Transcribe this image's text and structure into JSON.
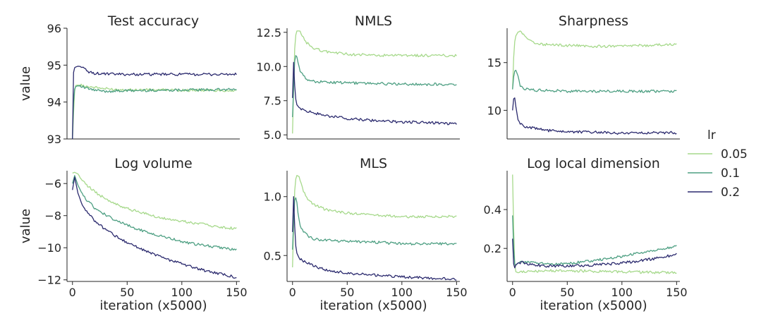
{
  "figure": {
    "legend_title": "lr",
    "legend_placement": "right",
    "series_colors": {
      "0.05": "#a6d98b",
      "0.1": "#4d9f82",
      "0.2": "#2b2a6e"
    }
  },
  "chart_data": [
    {
      "type": "line",
      "title": "Test accuracy",
      "xlabel": "",
      "ylabel": "value",
      "xlim": [
        -5,
        153
      ],
      "ylim": [
        93,
        96
      ],
      "yticks": [
        93,
        94,
        95,
        96
      ],
      "ytick_labels": [
        "93",
        "94",
        "95",
        "96"
      ],
      "xticks": [],
      "xtick_labels": [],
      "grid": false,
      "series": [
        {
          "name": "0.05",
          "x": [
            0,
            1,
            2,
            3,
            5,
            8,
            12,
            20,
            30,
            40,
            60,
            80,
            100,
            120,
            150
          ],
          "values": [
            93.0,
            93.7,
            94.3,
            94.45,
            94.46,
            94.45,
            94.43,
            94.4,
            94.36,
            94.34,
            94.33,
            94.33,
            94.32,
            94.32,
            94.31
          ]
        },
        {
          "name": "0.1",
          "x": [
            0,
            1,
            2,
            3,
            5,
            8,
            12,
            20,
            30,
            40,
            60,
            80,
            100,
            120,
            150
          ],
          "values": [
            93.0,
            94.0,
            94.35,
            94.42,
            94.44,
            94.42,
            94.38,
            94.32,
            94.29,
            94.3,
            94.31,
            94.32,
            94.33,
            94.33,
            94.34
          ]
        },
        {
          "name": "0.2",
          "x": [
            0,
            1,
            2,
            3,
            5,
            8,
            10,
            14,
            20,
            30,
            50,
            80,
            100,
            120,
            150
          ],
          "values": [
            93.0,
            94.8,
            94.93,
            94.95,
            94.97,
            94.96,
            94.92,
            94.82,
            94.78,
            94.76,
            94.75,
            94.75,
            94.75,
            94.75,
            94.75
          ]
        }
      ]
    },
    {
      "type": "line",
      "title": "NMLS",
      "xlabel": "",
      "ylabel": "",
      "xlim": [
        -5,
        153
      ],
      "ylim": [
        4.7,
        12.8
      ],
      "yticks": [
        5.0,
        7.5,
        10.0,
        12.5
      ],
      "ytick_labels": [
        "5.0",
        "7.5",
        "10.0",
        "12.5"
      ],
      "xticks": [],
      "xtick_labels": [],
      "grid": false,
      "series": [
        {
          "name": "0.05",
          "x": [
            0,
            1,
            2,
            3,
            4,
            6,
            8,
            12,
            20,
            30,
            50,
            80,
            100,
            120,
            150
          ],
          "values": [
            5.1,
            8.5,
            11.3,
            12.3,
            12.6,
            12.6,
            12.4,
            11.8,
            11.3,
            11.1,
            10.9,
            10.8,
            10.8,
            10.8,
            10.8
          ]
        },
        {
          "name": "0.1",
          "x": [
            0,
            1,
            2,
            3,
            4,
            5,
            7,
            10,
            15,
            20,
            30,
            50,
            80,
            100,
            150
          ],
          "values": [
            6.3,
            8.5,
            10.4,
            10.8,
            10.7,
            10.3,
            9.7,
            9.3,
            9.0,
            8.9,
            8.85,
            8.8,
            8.75,
            8.7,
            8.7
          ]
        },
        {
          "name": "0.2",
          "x": [
            0,
            1,
            2,
            3,
            4,
            6,
            10,
            20,
            30,
            50,
            80,
            100,
            120,
            150
          ],
          "values": [
            7.7,
            10.3,
            8.6,
            7.6,
            7.2,
            7.0,
            6.8,
            6.6,
            6.4,
            6.2,
            6.0,
            5.95,
            5.9,
            5.8
          ]
        }
      ]
    },
    {
      "type": "line",
      "title": "Sharpness",
      "xlabel": "",
      "ylabel": "",
      "xlim": [
        -5,
        153
      ],
      "ylim": [
        7.0,
        18.6
      ],
      "yticks": [
        10,
        15
      ],
      "ytick_labels": [
        "10",
        "15"
      ],
      "xticks": [],
      "xtick_labels": [],
      "grid": false,
      "series": [
        {
          "name": "0.05",
          "x": [
            0,
            1,
            2,
            3,
            5,
            8,
            12,
            20,
            30,
            50,
            80,
            100,
            120,
            150
          ],
          "values": [
            12.2,
            15.5,
            17.2,
            17.8,
            18.2,
            18.3,
            17.6,
            17.0,
            16.9,
            16.8,
            16.7,
            16.7,
            16.8,
            16.9
          ]
        },
        {
          "name": "0.1",
          "x": [
            0,
            1,
            2,
            3,
            5,
            7,
            10,
            15,
            20,
            30,
            50,
            80,
            100,
            150
          ],
          "values": [
            12.2,
            13.5,
            14.1,
            14.2,
            13.6,
            12.6,
            12.3,
            12.2,
            12.1,
            12.1,
            12.0,
            12.0,
            12.0,
            12.0
          ]
        },
        {
          "name": "0.2",
          "x": [
            0,
            1,
            2,
            3,
            5,
            8,
            12,
            20,
            30,
            50,
            80,
            100,
            120,
            150
          ],
          "values": [
            10.0,
            11.2,
            11.3,
            10.4,
            9.0,
            8.5,
            8.3,
            8.1,
            7.9,
            7.75,
            7.7,
            7.6,
            7.65,
            7.65
          ]
        }
      ]
    },
    {
      "type": "line",
      "title": "Log volume",
      "xlabel": "iteration (x5000)",
      "ylabel": "value",
      "xlim": [
        -5,
        153
      ],
      "ylim": [
        -12.1,
        -5.2
      ],
      "yticks": [
        -12,
        -10,
        -8,
        -6
      ],
      "ytick_labels": [
        "−12",
        "−10",
        "−8",
        "−6"
      ],
      "xticks": [
        0,
        50,
        100,
        150
      ],
      "xtick_labels": [
        "0",
        "50",
        "100",
        "150"
      ],
      "grid": false,
      "series": [
        {
          "name": "0.05",
          "x": [
            0,
            2,
            5,
            10,
            20,
            30,
            40,
            50,
            60,
            70,
            80,
            90,
            100,
            110,
            120,
            130,
            140,
            150
          ],
          "values": [
            -5.35,
            -5.3,
            -5.4,
            -5.9,
            -6.5,
            -6.95,
            -7.3,
            -7.55,
            -7.75,
            -7.95,
            -8.1,
            -8.25,
            -8.35,
            -8.45,
            -8.55,
            -8.65,
            -8.75,
            -8.8
          ]
        },
        {
          "name": "0.1",
          "x": [
            0,
            2,
            5,
            10,
            20,
            30,
            40,
            50,
            60,
            70,
            80,
            90,
            100,
            110,
            120,
            130,
            140,
            150
          ],
          "values": [
            -6.0,
            -5.5,
            -6.1,
            -6.8,
            -7.5,
            -7.95,
            -8.3,
            -8.6,
            -8.85,
            -9.05,
            -9.25,
            -9.45,
            -9.6,
            -9.75,
            -9.85,
            -9.95,
            -10.05,
            -10.15
          ]
        },
        {
          "name": "0.2",
          "x": [
            0,
            2,
            5,
            10,
            20,
            30,
            40,
            50,
            60,
            70,
            80,
            90,
            100,
            110,
            120,
            130,
            140,
            150
          ],
          "values": [
            -6.4,
            -5.6,
            -6.6,
            -7.5,
            -8.3,
            -8.85,
            -9.3,
            -9.7,
            -10.0,
            -10.3,
            -10.55,
            -10.8,
            -11.0,
            -11.2,
            -11.4,
            -11.55,
            -11.7,
            -11.85
          ]
        }
      ]
    },
    {
      "type": "line",
      "title": "MLS",
      "xlabel": "iteration (x5000)",
      "ylabel": "",
      "xlim": [
        -5,
        153
      ],
      "ylim": [
        0.28,
        1.22
      ],
      "yticks": [
        0.5,
        1.0
      ],
      "ytick_labels": [
        "0.5",
        "1.0"
      ],
      "xticks": [
        0,
        50,
        100,
        150
      ],
      "xtick_labels": [
        "0",
        "50",
        "100",
        "150"
      ],
      "grid": false,
      "series": [
        {
          "name": "0.05",
          "x": [
            0,
            1,
            2,
            3,
            4,
            6,
            8,
            12,
            20,
            30,
            50,
            80,
            100,
            120,
            150
          ],
          "values": [
            0.4,
            0.75,
            1.05,
            1.15,
            1.18,
            1.17,
            1.1,
            1.0,
            0.93,
            0.89,
            0.86,
            0.84,
            0.83,
            0.83,
            0.83
          ]
        },
        {
          "name": "0.1",
          "x": [
            0,
            1,
            2,
            3,
            4,
            5,
            7,
            10,
            15,
            20,
            30,
            50,
            80,
            100,
            150
          ],
          "values": [
            0.55,
            0.8,
            0.97,
            0.99,
            0.95,
            0.86,
            0.75,
            0.7,
            0.66,
            0.64,
            0.63,
            0.62,
            0.61,
            0.6,
            0.6
          ]
        },
        {
          "name": "0.2",
          "x": [
            0,
            1,
            2,
            3,
            4,
            6,
            10,
            20,
            30,
            50,
            80,
            100,
            120,
            150
          ],
          "values": [
            0.7,
            1.0,
            0.75,
            0.58,
            0.52,
            0.48,
            0.45,
            0.41,
            0.38,
            0.35,
            0.33,
            0.32,
            0.31,
            0.3
          ]
        }
      ]
    },
    {
      "type": "line",
      "title": "Log local dimension",
      "xlabel": "iteration (x5000)",
      "ylabel": "",
      "xlim": [
        -5,
        153
      ],
      "ylim": [
        0.03,
        0.6
      ],
      "yticks": [
        0.2,
        0.4
      ],
      "ytick_labels": [
        "0.2",
        "0.4"
      ],
      "xticks": [
        0,
        50,
        100,
        150
      ],
      "xtick_labels": [
        "0",
        "50",
        "100",
        "150"
      ],
      "grid": false,
      "series": [
        {
          "name": "0.05",
          "x": [
            0,
            1,
            2,
            3,
            5,
            8,
            12,
            20,
            30,
            50,
            70,
            90,
            110,
            130,
            150
          ],
          "values": [
            0.58,
            0.3,
            0.12,
            0.08,
            0.075,
            0.078,
            0.08,
            0.083,
            0.085,
            0.085,
            0.083,
            0.08,
            0.078,
            0.077,
            0.075
          ]
        },
        {
          "name": "0.1",
          "x": [
            0,
            1,
            2,
            3,
            5,
            8,
            12,
            20,
            30,
            40,
            50,
            60,
            70,
            80,
            90,
            100,
            110,
            120,
            130,
            140,
            150
          ],
          "values": [
            0.37,
            0.2,
            0.12,
            0.115,
            0.125,
            0.13,
            0.13,
            0.125,
            0.12,
            0.12,
            0.122,
            0.128,
            0.135,
            0.142,
            0.15,
            0.16,
            0.17,
            0.18,
            0.19,
            0.2,
            0.21
          ]
        },
        {
          "name": "0.2",
          "x": [
            0,
            1,
            2,
            3,
            5,
            8,
            12,
            20,
            30,
            40,
            50,
            60,
            70,
            80,
            90,
            100,
            110,
            120,
            130,
            140,
            150
          ],
          "values": [
            0.25,
            0.12,
            0.1,
            0.115,
            0.125,
            0.128,
            0.122,
            0.115,
            0.11,
            0.11,
            0.11,
            0.112,
            0.114,
            0.117,
            0.12,
            0.125,
            0.132,
            0.14,
            0.148,
            0.158,
            0.17
          ]
        }
      ]
    }
  ]
}
